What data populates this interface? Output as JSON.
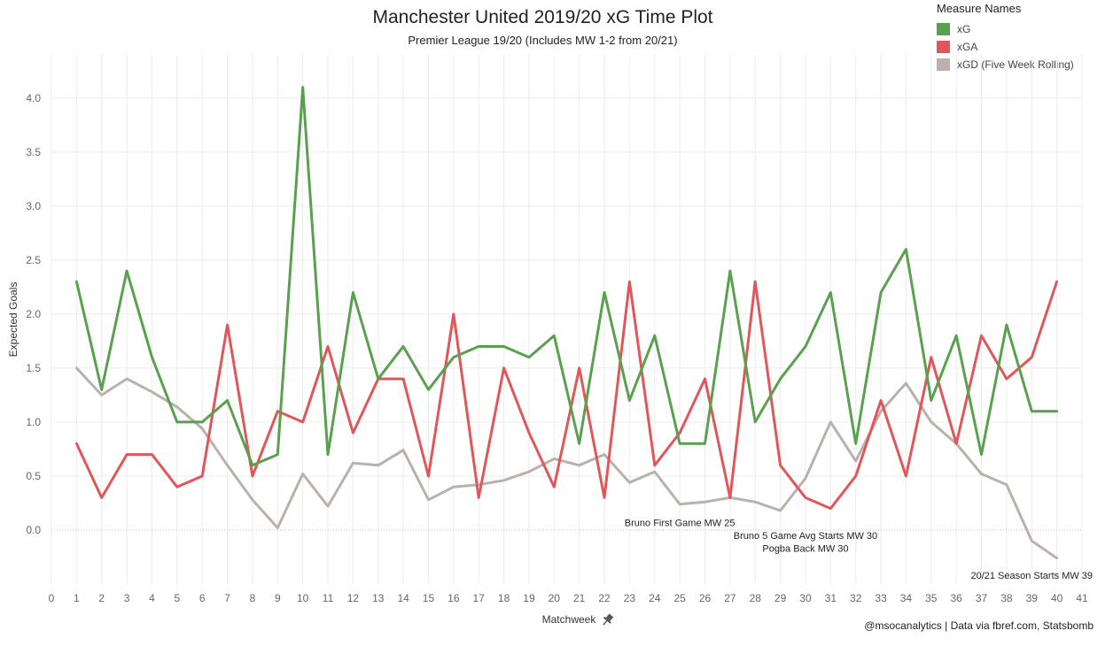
{
  "title": "Manchester United 2019/20 xG Time Plot",
  "subtitle": "Premier League 19/20 (Includes MW 1-2 from 20/21)",
  "footer": "@msocanalytics | Data via fbref.com, Statsbomb",
  "legend": {
    "title": "Measure Names",
    "items": [
      {
        "label": "xG",
        "color": "#59a14f"
      },
      {
        "label": "xGA",
        "color": "#e15759"
      },
      {
        "label": "xGD (Five Week Rolling)",
        "color": "#bab0ac"
      }
    ]
  },
  "chart_data": {
    "type": "line",
    "xlabel": "Matchweek",
    "xlabel_icon": "pin-icon",
    "ylabel": "Expected Goals",
    "xlim": [
      0,
      41
    ],
    "ylim": [
      -0.5,
      4.4
    ],
    "x_ticks": [
      0,
      1,
      2,
      3,
      4,
      5,
      6,
      7,
      8,
      9,
      10,
      11,
      12,
      13,
      14,
      15,
      16,
      17,
      18,
      19,
      20,
      21,
      22,
      23,
      24,
      25,
      26,
      27,
      28,
      29,
      30,
      31,
      32,
      33,
      34,
      35,
      36,
      37,
      38,
      39,
      40,
      41
    ],
    "y_ticks": [
      0.0,
      0.5,
      1.0,
      1.5,
      2.0,
      2.5,
      3.0,
      3.5,
      4.0
    ],
    "y_tick_labels": [
      "0.0",
      "0.5",
      "1.0",
      "1.5",
      "2.0",
      "2.5",
      "3.0",
      "3.5",
      "4.0"
    ],
    "grid": "vertical and horizontal",
    "zero_line": "dotted",
    "series": [
      {
        "name": "xG",
        "color": "#59a14f",
        "x": [
          1,
          2,
          3,
          4,
          5,
          6,
          7,
          8,
          9,
          10,
          11,
          12,
          13,
          14,
          15,
          16,
          17,
          18,
          19,
          20,
          21,
          22,
          23,
          24,
          25,
          26,
          27,
          28,
          29,
          30,
          31,
          32,
          33,
          34,
          35,
          36,
          37,
          38,
          39,
          40
        ],
        "values": [
          2.3,
          1.3,
          2.4,
          1.6,
          1.0,
          1.0,
          1.2,
          0.6,
          0.7,
          4.1,
          0.7,
          2.2,
          1.4,
          1.7,
          1.3,
          1.6,
          1.7,
          1.7,
          1.6,
          1.8,
          0.8,
          2.2,
          1.2,
          1.8,
          0.8,
          0.8,
          2.4,
          1.0,
          1.4,
          1.7,
          2.2,
          0.8,
          2.2,
          2.6,
          1.2,
          1.8,
          0.7,
          1.9,
          1.1,
          1.1
        ]
      },
      {
        "name": "xGA",
        "color": "#e15759",
        "x": [
          1,
          2,
          3,
          4,
          5,
          6,
          7,
          8,
          9,
          10,
          11,
          12,
          13,
          14,
          15,
          16,
          17,
          18,
          19,
          20,
          21,
          22,
          23,
          24,
          25,
          26,
          27,
          28,
          29,
          30,
          31,
          32,
          33,
          34,
          35,
          36,
          37,
          38,
          39,
          40
        ],
        "values": [
          0.8,
          0.3,
          0.7,
          0.7,
          0.4,
          0.5,
          1.9,
          0.5,
          1.1,
          1.0,
          1.7,
          0.9,
          1.4,
          1.4,
          0.5,
          2.0,
          0.3,
          1.5,
          0.9,
          0.4,
          1.5,
          0.3,
          2.3,
          0.6,
          0.9,
          1.4,
          0.3,
          2.3,
          0.6,
          0.3,
          0.2,
          0.5,
          1.2,
          0.5,
          1.6,
          0.8,
          1.8,
          1.4,
          1.6,
          2.3
        ]
      },
      {
        "name": "xGD (Five Week Rolling)",
        "color": "#bab0ac",
        "x": [
          1,
          2,
          3,
          4,
          5,
          6,
          7,
          8,
          9,
          10,
          11,
          12,
          13,
          14,
          15,
          16,
          17,
          18,
          19,
          20,
          21,
          22,
          23,
          24,
          25,
          26,
          27,
          28,
          29,
          30,
          31,
          32,
          33,
          34,
          35,
          36,
          37,
          38,
          39,
          40
        ],
        "values": [
          1.5,
          1.25,
          1.4,
          1.28,
          1.14,
          0.94,
          0.6,
          0.28,
          0.02,
          0.52,
          0.22,
          0.62,
          0.6,
          0.74,
          0.28,
          0.4,
          0.42,
          0.46,
          0.54,
          0.66,
          0.6,
          0.7,
          0.44,
          0.54,
          0.24,
          0.26,
          0.3,
          0.26,
          0.18,
          0.48,
          1.0,
          0.64,
          1.1,
          1.36,
          1.0,
          0.8,
          0.52,
          0.42,
          -0.1,
          -0.26
        ]
      }
    ],
    "annotations": [
      {
        "text": "Bruno First Game MW 25",
        "x": 25,
        "y": 0.07
      },
      {
        "text": "Bruno 5 Game Avg Starts MW 30",
        "x": 30,
        "y": -0.05
      },
      {
        "text": "Pogba Back MW 30",
        "x": 30,
        "y": -0.17
      },
      {
        "text": "20/21 Season Starts MW 39",
        "x": 39,
        "y": -0.42
      }
    ]
  }
}
